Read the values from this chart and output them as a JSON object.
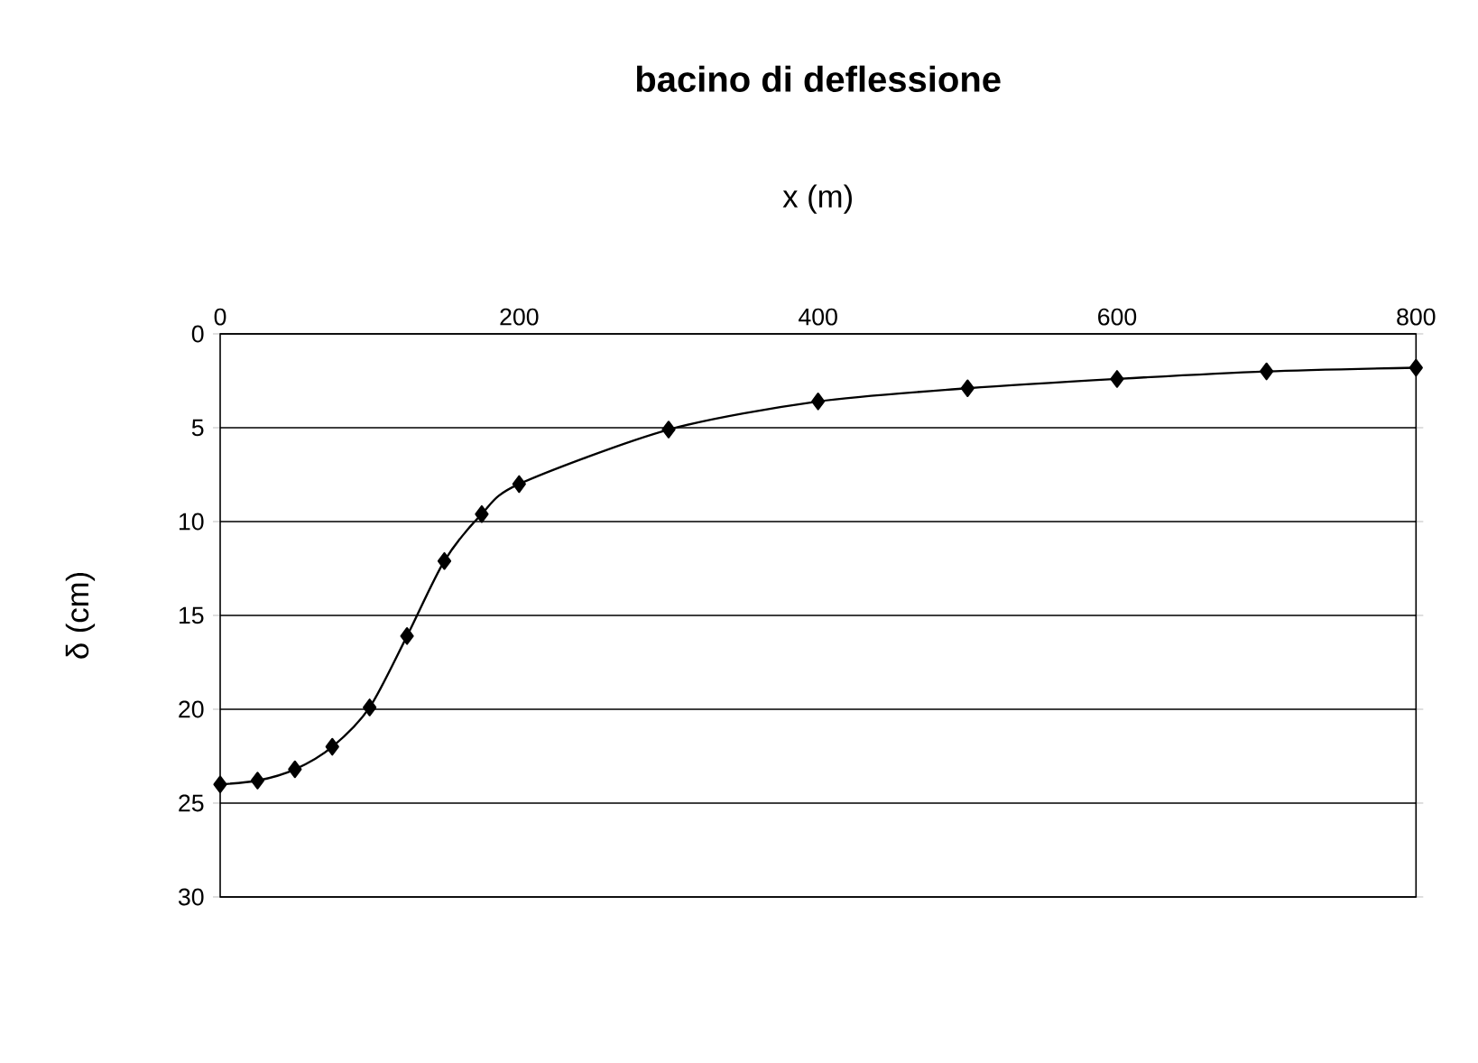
{
  "chart_data": {
    "type": "line",
    "title": "bacino di deflessione",
    "xlabel": "x (m)",
    "ylabel": "δ (cm)",
    "x": [
      0,
      25,
      50,
      75,
      100,
      125,
      150,
      175,
      200,
      300,
      400,
      500,
      600,
      700,
      800
    ],
    "series": [
      {
        "color": "#000000",
        "values": [
          24,
          23.8,
          23.2,
          22,
          19.9,
          16.1,
          12.1,
          9.6,
          8,
          5.1,
          3.6,
          2.9,
          2.4,
          2.0,
          1.8
        ]
      }
    ],
    "xlim": [
      0,
      800
    ],
    "xticks": [
      0,
      200,
      400,
      600,
      800
    ],
    "ylim": [
      30,
      0
    ],
    "yticks": [
      0,
      5,
      10,
      15,
      20,
      25,
      30
    ],
    "grid": "y",
    "marker": "diamond",
    "line_style": "solid"
  }
}
